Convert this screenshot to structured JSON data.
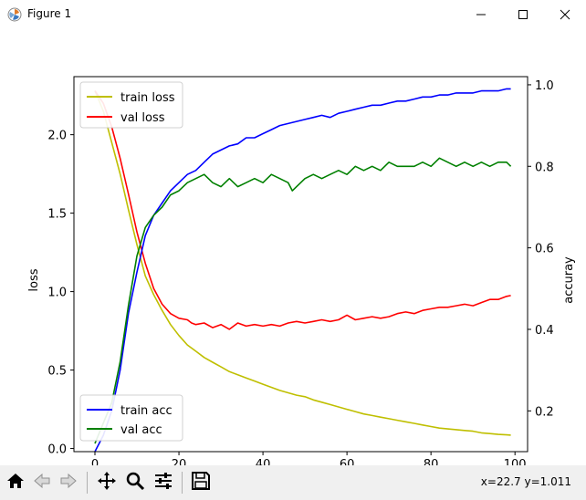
{
  "window": {
    "title": "Figure 1",
    "icons": [
      "matplotlib-icon",
      "minimize-icon",
      "maximize-icon",
      "close-icon"
    ]
  },
  "toolbar": {
    "buttons": [
      {
        "name": "home",
        "icon": "home-icon"
      },
      {
        "name": "back",
        "icon": "back-arrow-icon"
      },
      {
        "name": "forward",
        "icon": "forward-arrow-icon"
      },
      {
        "name": "pan",
        "icon": "move-icon"
      },
      {
        "name": "zoom",
        "icon": "magnifier-icon"
      },
      {
        "name": "configure",
        "icon": "sliders-icon"
      },
      {
        "name": "save",
        "icon": "floppy-disk-icon"
      }
    ],
    "coords": "x=22.7 y=1.011"
  },
  "chart_data": {
    "type": "line",
    "xlabel": "epoch",
    "ylabel": "loss",
    "y2label": "accuray",
    "xlim": [
      -5,
      103
    ],
    "ylim": [
      -0.02,
      2.37
    ],
    "y2lim": [
      0.1,
      1.02
    ],
    "xticks": [
      0,
      20,
      40,
      60,
      80,
      100
    ],
    "yticks": [
      0.0,
      0.5,
      1.0,
      1.5,
      2.0
    ],
    "y2ticks": [
      0.2,
      0.4,
      0.6,
      0.8,
      1.0
    ],
    "xtick_labels": [
      "0",
      "20",
      "40",
      "60",
      "80",
      "100"
    ],
    "ytick_labels": [
      "0.0",
      "0.5",
      "1.0",
      "1.5",
      "2.0"
    ],
    "y2tick_labels": [
      "0.2",
      "0.4",
      "0.6",
      "0.8",
      "1.0"
    ],
    "legend_loss": {
      "placement": "upper left",
      "entries": [
        "train loss",
        "val loss"
      ]
    },
    "legend_acc": {
      "placement": "lower left",
      "entries": [
        "train acc",
        "val acc"
      ]
    },
    "series": [
      {
        "name": "train loss",
        "axis": "left",
        "color": "#bfbf00",
        "points": [
          [
            0,
            2.28
          ],
          [
            2,
            2.15
          ],
          [
            4,
            1.95
          ],
          [
            6,
            1.75
          ],
          [
            8,
            1.52
          ],
          [
            10,
            1.3
          ],
          [
            11,
            1.2
          ],
          [
            12,
            1.1
          ],
          [
            14,
            0.98
          ],
          [
            16,
            0.88
          ],
          [
            18,
            0.79
          ],
          [
            20,
            0.72
          ],
          [
            22,
            0.66
          ],
          [
            24,
            0.62
          ],
          [
            26,
            0.58
          ],
          [
            28,
            0.55
          ],
          [
            30,
            0.52
          ],
          [
            32,
            0.49
          ],
          [
            34,
            0.47
          ],
          [
            36,
            0.45
          ],
          [
            38,
            0.43
          ],
          [
            40,
            0.41
          ],
          [
            42,
            0.39
          ],
          [
            44,
            0.37
          ],
          [
            46,
            0.355
          ],
          [
            48,
            0.34
          ],
          [
            50,
            0.33
          ],
          [
            52,
            0.31
          ],
          [
            54,
            0.295
          ],
          [
            56,
            0.28
          ],
          [
            58,
            0.265
          ],
          [
            60,
            0.25
          ],
          [
            62,
            0.235
          ],
          [
            64,
            0.22
          ],
          [
            66,
            0.21
          ],
          [
            68,
            0.2
          ],
          [
            70,
            0.19
          ],
          [
            72,
            0.18
          ],
          [
            74,
            0.17
          ],
          [
            76,
            0.16
          ],
          [
            78,
            0.15
          ],
          [
            80,
            0.14
          ],
          [
            82,
            0.13
          ],
          [
            84,
            0.125
          ],
          [
            86,
            0.12
          ],
          [
            88,
            0.115
          ],
          [
            90,
            0.11
          ],
          [
            92,
            0.1
          ],
          [
            94,
            0.095
          ],
          [
            96,
            0.09
          ],
          [
            98,
            0.087
          ],
          [
            99,
            0.085
          ]
        ]
      },
      {
        "name": "val loss",
        "axis": "left",
        "color": "#ff0000",
        "points": [
          [
            0,
            2.28
          ],
          [
            2,
            2.2
          ],
          [
            4,
            2.05
          ],
          [
            6,
            1.85
          ],
          [
            8,
            1.62
          ],
          [
            10,
            1.38
          ],
          [
            12,
            1.18
          ],
          [
            14,
            1.02
          ],
          [
            16,
            0.92
          ],
          [
            18,
            0.86
          ],
          [
            20,
            0.83
          ],
          [
            22,
            0.82
          ],
          [
            23,
            0.8
          ],
          [
            24,
            0.79
          ],
          [
            26,
            0.8
          ],
          [
            28,
            0.77
          ],
          [
            30,
            0.79
          ],
          [
            32,
            0.76
          ],
          [
            34,
            0.8
          ],
          [
            36,
            0.78
          ],
          [
            38,
            0.79
          ],
          [
            40,
            0.78
          ],
          [
            42,
            0.79
          ],
          [
            44,
            0.78
          ],
          [
            46,
            0.8
          ],
          [
            48,
            0.81
          ],
          [
            50,
            0.8
          ],
          [
            52,
            0.81
          ],
          [
            54,
            0.82
          ],
          [
            56,
            0.81
          ],
          [
            58,
            0.82
          ],
          [
            60,
            0.85
          ],
          [
            62,
            0.82
          ],
          [
            64,
            0.83
          ],
          [
            66,
            0.84
          ],
          [
            68,
            0.83
          ],
          [
            70,
            0.84
          ],
          [
            72,
            0.86
          ],
          [
            74,
            0.87
          ],
          [
            76,
            0.86
          ],
          [
            78,
            0.88
          ],
          [
            80,
            0.89
          ],
          [
            82,
            0.9
          ],
          [
            84,
            0.9
          ],
          [
            86,
            0.91
          ],
          [
            88,
            0.92
          ],
          [
            90,
            0.91
          ],
          [
            92,
            0.93
          ],
          [
            94,
            0.95
          ],
          [
            96,
            0.95
          ],
          [
            98,
            0.97
          ],
          [
            99,
            0.975
          ]
        ]
      },
      {
        "name": "train acc",
        "axis": "right",
        "color": "#0000ff",
        "points": [
          [
            0,
            0.1
          ],
          [
            2,
            0.14
          ],
          [
            4,
            0.2
          ],
          [
            6,
            0.3
          ],
          [
            8,
            0.44
          ],
          [
            10,
            0.54
          ],
          [
            12,
            0.63
          ],
          [
            14,
            0.68
          ],
          [
            16,
            0.71
          ],
          [
            18,
            0.74
          ],
          [
            20,
            0.76
          ],
          [
            22,
            0.78
          ],
          [
            24,
            0.79
          ],
          [
            26,
            0.81
          ],
          [
            28,
            0.83
          ],
          [
            30,
            0.84
          ],
          [
            32,
            0.85
          ],
          [
            34,
            0.855
          ],
          [
            36,
            0.87
          ],
          [
            38,
            0.87
          ],
          [
            40,
            0.88
          ],
          [
            42,
            0.89
          ],
          [
            44,
            0.9
          ],
          [
            46,
            0.905
          ],
          [
            48,
            0.91
          ],
          [
            50,
            0.915
          ],
          [
            52,
            0.92
          ],
          [
            54,
            0.925
          ],
          [
            56,
            0.92
          ],
          [
            58,
            0.93
          ],
          [
            60,
            0.935
          ],
          [
            62,
            0.94
          ],
          [
            64,
            0.945
          ],
          [
            66,
            0.95
          ],
          [
            68,
            0.95
          ],
          [
            70,
            0.955
          ],
          [
            72,
            0.96
          ],
          [
            74,
            0.96
          ],
          [
            76,
            0.965
          ],
          [
            78,
            0.97
          ],
          [
            80,
            0.97
          ],
          [
            82,
            0.975
          ],
          [
            84,
            0.975
          ],
          [
            86,
            0.98
          ],
          [
            88,
            0.98
          ],
          [
            90,
            0.98
          ],
          [
            92,
            0.985
          ],
          [
            94,
            0.985
          ],
          [
            96,
            0.985
          ],
          [
            98,
            0.99
          ],
          [
            99,
            0.99
          ]
        ]
      },
      {
        "name": "val acc",
        "axis": "right",
        "color": "#008000",
        "points": [
          [
            0,
            0.12
          ],
          [
            2,
            0.17
          ],
          [
            4,
            0.22
          ],
          [
            6,
            0.32
          ],
          [
            8,
            0.46
          ],
          [
            10,
            0.58
          ],
          [
            12,
            0.65
          ],
          [
            14,
            0.68
          ],
          [
            16,
            0.7
          ],
          [
            18,
            0.73
          ],
          [
            20,
            0.74
          ],
          [
            22,
            0.76
          ],
          [
            24,
            0.77
          ],
          [
            26,
            0.78
          ],
          [
            28,
            0.76
          ],
          [
            30,
            0.75
          ],
          [
            32,
            0.77
          ],
          [
            34,
            0.75
          ],
          [
            36,
            0.76
          ],
          [
            38,
            0.77
          ],
          [
            40,
            0.76
          ],
          [
            42,
            0.78
          ],
          [
            44,
            0.77
          ],
          [
            46,
            0.76
          ],
          [
            47,
            0.74
          ],
          [
            48,
            0.75
          ],
          [
            50,
            0.77
          ],
          [
            52,
            0.78
          ],
          [
            54,
            0.77
          ],
          [
            56,
            0.78
          ],
          [
            58,
            0.79
          ],
          [
            60,
            0.78
          ],
          [
            62,
            0.8
          ],
          [
            64,
            0.79
          ],
          [
            66,
            0.8
          ],
          [
            68,
            0.79
          ],
          [
            70,
            0.81
          ],
          [
            72,
            0.8
          ],
          [
            74,
            0.8
          ],
          [
            76,
            0.8
          ],
          [
            78,
            0.81
          ],
          [
            80,
            0.8
          ],
          [
            82,
            0.82
          ],
          [
            84,
            0.81
          ],
          [
            86,
            0.8
          ],
          [
            88,
            0.81
          ],
          [
            90,
            0.8
          ],
          [
            92,
            0.81
          ],
          [
            94,
            0.8
          ],
          [
            96,
            0.81
          ],
          [
            98,
            0.81
          ],
          [
            99,
            0.8
          ]
        ]
      }
    ]
  }
}
